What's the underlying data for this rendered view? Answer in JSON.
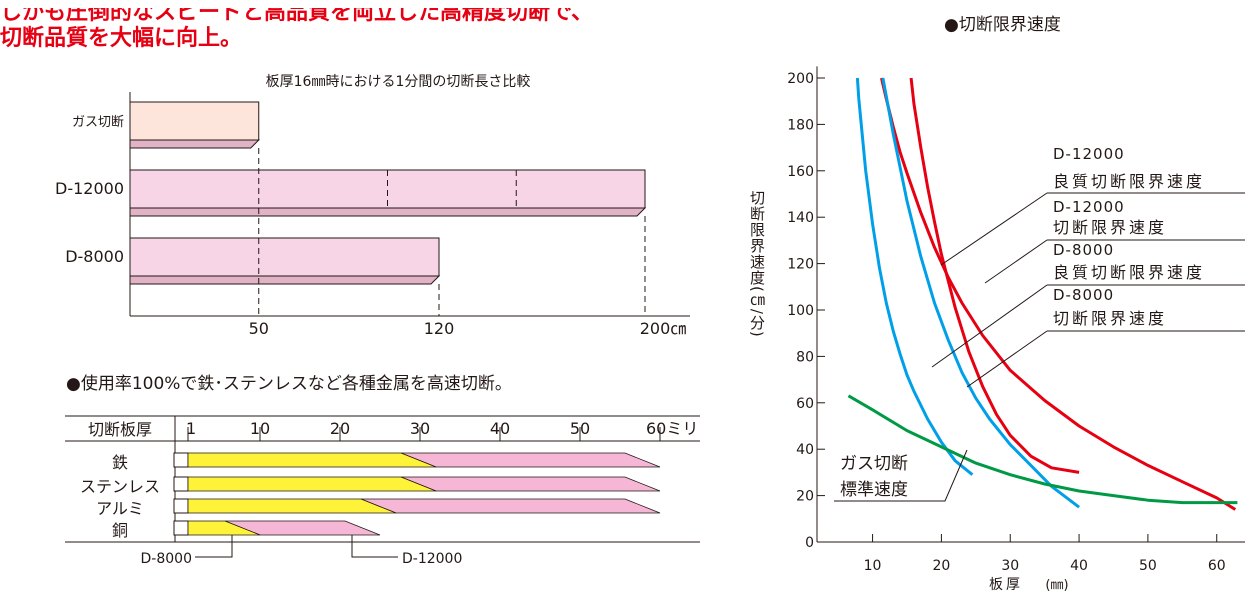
{
  "headline": {
    "line1": "しかも圧倒的なスピードと高品質を両立した高精度切断で、",
    "line2": "切断品質を大幅に向上。"
  },
  "chart_data": [
    {
      "type": "bar",
      "title": "板厚16㎜時における1分間の切断長さ比較",
      "categories": [
        "ガス切断",
        "D-12000",
        "D-8000"
      ],
      "values": [
        50,
        200,
        120
      ],
      "xticks": [
        {
          "value": 50,
          "label": "50"
        },
        {
          "value": 120,
          "label": "120"
        },
        {
          "value": 200,
          "label": "200㎝"
        }
      ],
      "xlim": [
        0,
        200
      ],
      "colors": {
        "ガス切断": "#fde5dc",
        "D-12000": "#f7d5e6",
        "D-8000": "#f7d5e6"
      },
      "dashed_marks": {
        "D-12000": [
          100,
          150
        ]
      }
    },
    {
      "type": "bar",
      "title": "●使用率100%で鉄･ステンレスなど各種金属を高速切断。",
      "header_label": "切断板厚",
      "xticks": [
        "1",
        "10",
        "20",
        "30",
        "40",
        "50",
        "60ミリ"
      ],
      "xlim": [
        0,
        60
      ],
      "categories": [
        "鉄",
        "ステンレス",
        "アルミ",
        "銅"
      ],
      "series": [
        {
          "name": "D-8000",
          "values": [
            32,
            32,
            27,
            10
          ],
          "color": "#fff33a"
        },
        {
          "name": "D-12000",
          "values": [
            60,
            60,
            60,
            25
          ],
          "color": "#f6b6d6"
        }
      ]
    },
    {
      "type": "line",
      "title": "●切断限界速度",
      "xlabel": "板厚",
      "xunit": "(㎜)",
      "ylabel": "切断限界速度(㎝/分)",
      "xlim": [
        0,
        63
      ],
      "ylim": [
        0,
        205
      ],
      "xticks": [
        10,
        20,
        30,
        40,
        50,
        60
      ],
      "yticks": [
        0,
        20,
        40,
        60,
        80,
        100,
        120,
        140,
        160,
        180,
        200
      ],
      "series": [
        {
          "name": "D-12000 良質切断限界速度",
          "color": "#e60012",
          "x": [
            11.3,
            12,
            13,
            14,
            15,
            17,
            19,
            21,
            23,
            26,
            30,
            35,
            40,
            45,
            50,
            55,
            60,
            62.7
          ],
          "y": [
            200,
            191,
            179,
            168,
            159,
            142,
            127,
            114,
            103,
            89,
            74,
            61,
            50,
            41,
            33,
            26,
            19,
            14
          ]
        },
        {
          "name": "D-12000 切断限界速度",
          "color": "#e60012",
          "x": [
            15.6,
            16,
            17,
            18,
            19,
            20,
            22,
            24,
            26,
            28,
            30,
            33,
            36,
            40
          ],
          "y": [
            200,
            189,
            170,
            153,
            138,
            124,
            101,
            82,
            67,
            55,
            46,
            37,
            32,
            30
          ]
        },
        {
          "name": "D-8000 良質切断限界速度",
          "color": "#00a0e9",
          "x": [
            7.8,
            8,
            9,
            10,
            11,
            12,
            13,
            14,
            15,
            16,
            18,
            20,
            22,
            24.5
          ],
          "y": [
            200,
            191,
            160,
            137,
            118,
            103,
            91,
            81,
            72,
            65,
            53,
            43,
            35,
            29
          ]
        },
        {
          "name": "D-8000 切断限界速度",
          "color": "#00a0e9",
          "x": [
            11.5,
            13,
            15,
            17,
            19,
            21,
            23,
            25,
            27,
            30,
            33,
            36,
            40
          ],
          "y": [
            200,
            176,
            147,
            123,
            103,
            87,
            73,
            62,
            53,
            42,
            33,
            24,
            15
          ]
        },
        {
          "name": "ガス切断 標準速度",
          "color": "#009944",
          "x": [
            6.5,
            10,
            15,
            20,
            25,
            30,
            35,
            40,
            45,
            50,
            55,
            60,
            63
          ],
          "y": [
            63,
            57,
            48,
            41,
            34,
            29,
            25,
            22,
            20,
            18,
            17,
            17,
            17
          ]
        }
      ],
      "annotations": [
        {
          "line1": "D-12000",
          "line2": "良質切断限界速度"
        },
        {
          "line1": "D-12000",
          "line2": "切断限界速度"
        },
        {
          "line1": "D-8000",
          "line2": "良質切断限界速度"
        },
        {
          "line1": "D-8000",
          "line2": "切断限界速度"
        },
        {
          "line1": "ガス切断",
          "line2": "標準速度"
        }
      ]
    }
  ]
}
